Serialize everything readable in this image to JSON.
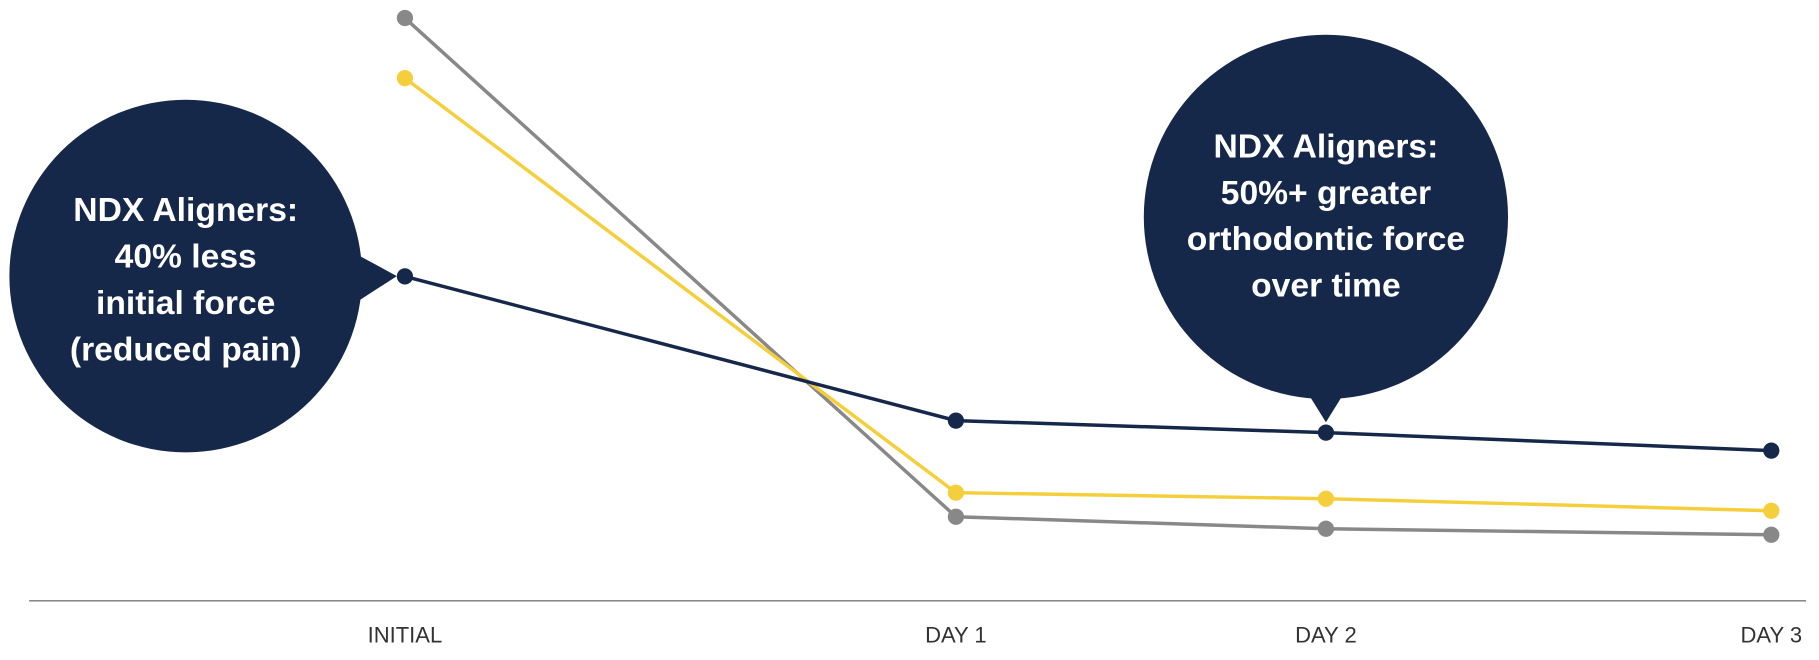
{
  "chart_data": {
    "type": "line",
    "categories": [
      "INITIAL",
      "DAY 1",
      "DAY 2",
      "DAY 3"
    ],
    "ylim": [
      0,
      100
    ],
    "series": [
      {
        "color": "#888888",
        "values": [
          97,
          14,
          12,
          11
        ]
      },
      {
        "color": "#f5cf3b",
        "values": [
          87,
          18,
          17,
          15
        ]
      },
      {
        "color": "#16284a",
        "values": [
          54,
          30,
          28,
          25
        ]
      }
    ],
    "annotations": [
      {
        "lines": [
          "NDX Aligners:",
          "40% less",
          "initial force",
          "(reduced pain)"
        ]
      },
      {
        "lines": [
          "NDX Aligners:",
          "50%+ greater",
          "orthodontic force",
          "over time"
        ]
      }
    ]
  }
}
